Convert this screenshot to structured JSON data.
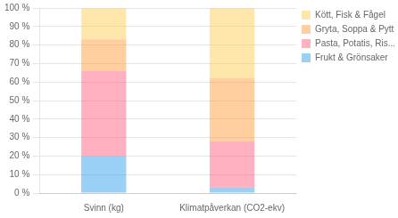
{
  "chart_data": {
    "type": "bar",
    "stacked": true,
    "categories": [
      "Svinn (kg)",
      "Klimatpåverkan (CO2-ekv)"
    ],
    "series": [
      {
        "name": "Frukt & Grönsaker",
        "values": [
          20,
          3
        ]
      },
      {
        "name": "Pasta, Potatis, Ris...",
        "values": [
          46,
          25
        ]
      },
      {
        "name": "Gryta, Soppa & Pytt i panna",
        "values": [
          17,
          34
        ]
      },
      {
        "name": "Kött, Fisk & Fågel",
        "values": [
          17,
          38
        ]
      }
    ],
    "ylim": [
      0,
      100
    ],
    "yticks": [
      {
        "value": 0,
        "label": "0 %"
      },
      {
        "value": 10,
        "label": "10 %"
      },
      {
        "value": 20,
        "label": "20 %"
      },
      {
        "value": 30,
        "label": "30 %"
      },
      {
        "value": 40,
        "label": "40 %"
      },
      {
        "value": 50,
        "label": "50 %"
      },
      {
        "value": 60,
        "label": "60 %"
      },
      {
        "value": 70,
        "label": "70 %"
      },
      {
        "value": 80,
        "label": "80 %"
      },
      {
        "value": 90,
        "label": "90 %"
      },
      {
        "value": 100,
        "label": "100 %"
      }
    ],
    "grid": true,
    "legend": "right"
  }
}
